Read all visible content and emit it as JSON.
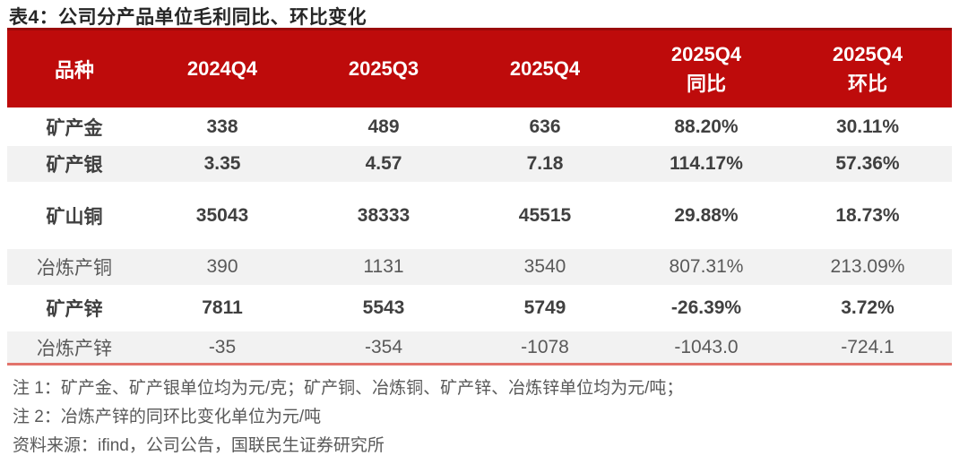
{
  "title": "表4：公司分产品单位毛利同比、环比变化",
  "header": {
    "category": "品种",
    "col_2024q4": "2024Q4",
    "col_2025q3": "2025Q3",
    "col_2025q4": "2025Q4",
    "yoy_line1": "2025Q4",
    "yoy_line2": "同比",
    "qoq_line1": "2025Q4",
    "qoq_line2": "环比"
  },
  "rows": [
    {
      "cells": [
        "矿产金",
        "338",
        "489",
        "636",
        "88.20%",
        "30.11%"
      ]
    },
    {
      "cells": [
        "矿产银",
        "3.35",
        "4.57",
        "7.18",
        "114.17%",
        "57.36%"
      ]
    },
    {
      "cells": [
        "矿山铜",
        "35043",
        "38333",
        "45515",
        "29.88%",
        "18.73%"
      ]
    },
    {
      "cells": [
        "冶炼产铜",
        "390",
        "1131",
        "3540",
        "807.31%",
        "213.09%"
      ]
    },
    {
      "cells": [
        "矿产锌",
        "7811",
        "5543",
        "5749",
        "-26.39%",
        "3.72%"
      ]
    },
    {
      "cells": [
        "冶炼产锌",
        "-35",
        "-354",
        "-1078",
        "-1043.0",
        "-724.1"
      ]
    }
  ],
  "notes": {
    "note1": "注 1：矿产金、矿产银单位均为元/克；矿产铜、冶炼铜、矿产锌、冶炼锌单位均为元/吨；",
    "note2": "注 2：冶炼产锌的同环比变化单位为元/吨",
    "source": "资料来源：ifind，公司公告，国联民生证券研究所"
  },
  "colors": {
    "header_bg": "#be0b0b",
    "header_top_border": "#9a0a0a",
    "header_text": "#ffffff",
    "zebra_row_bg": "#f2f2f2",
    "bold_text": "#404040",
    "normal_text": "#595959",
    "bottom_rule": "#e2736b",
    "title_text": "#262626"
  }
}
